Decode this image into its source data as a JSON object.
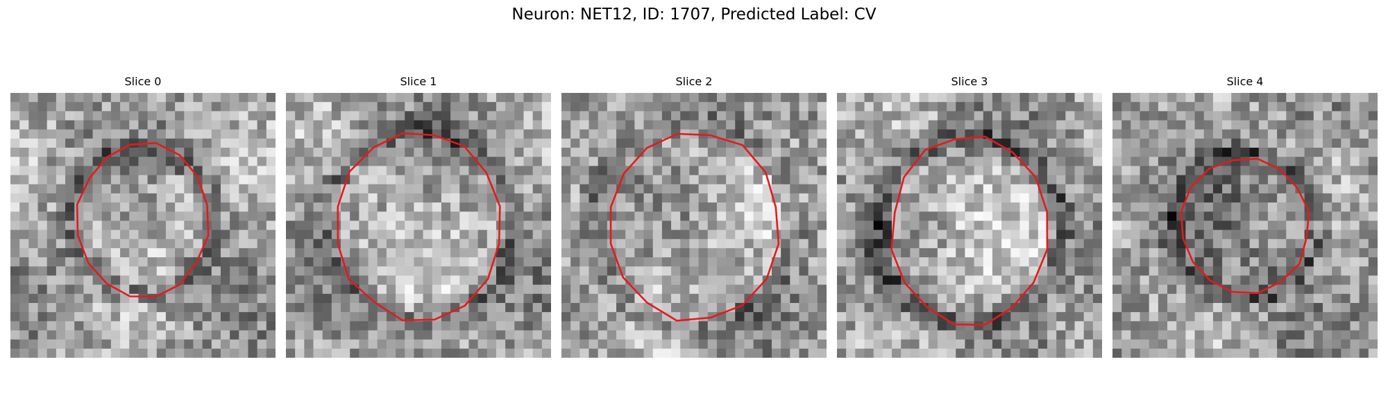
{
  "figure": {
    "title": "Neuron: NET12, ID: 1707, Predicted Label: CV",
    "contour_color": "#e41a1c"
  },
  "slices": [
    {
      "label": "Slice 0",
      "seed": 11,
      "center": [
        0.5,
        0.48
      ],
      "ring_radius": 0.27,
      "ring_darkness": 0.18,
      "inner_brightness": 0.07,
      "contour_radius": [
        0.246,
        0.29
      ]
    },
    {
      "label": "Slice 1",
      "seed": 23,
      "center": [
        0.5,
        0.5
      ],
      "ring_radius": 0.36,
      "ring_darkness": 0.2,
      "inner_brightness": 0.06,
      "contour_radius": [
        0.307,
        0.357
      ]
    },
    {
      "label": "Slice 2",
      "seed": 37,
      "center": [
        0.5,
        0.5
      ],
      "ring_radius": 0.39,
      "ring_darkness": 0.15,
      "inner_brightness": 0.05,
      "contour_radius": [
        0.324,
        0.357
      ]
    },
    {
      "label": "Slice 3",
      "seed": 41,
      "center": [
        0.5,
        0.52
      ],
      "ring_radius": 0.35,
      "ring_darkness": 0.26,
      "inner_brightness": 0.08,
      "contour_radius": [
        0.293,
        0.357
      ]
    },
    {
      "label": "Slice 4",
      "seed": 59,
      "center": [
        0.5,
        0.5
      ],
      "ring_radius": 0.27,
      "ring_darkness": 0.28,
      "inner_brightness": -0.08,
      "contour_radius": [
        0.243,
        0.257
      ]
    }
  ]
}
